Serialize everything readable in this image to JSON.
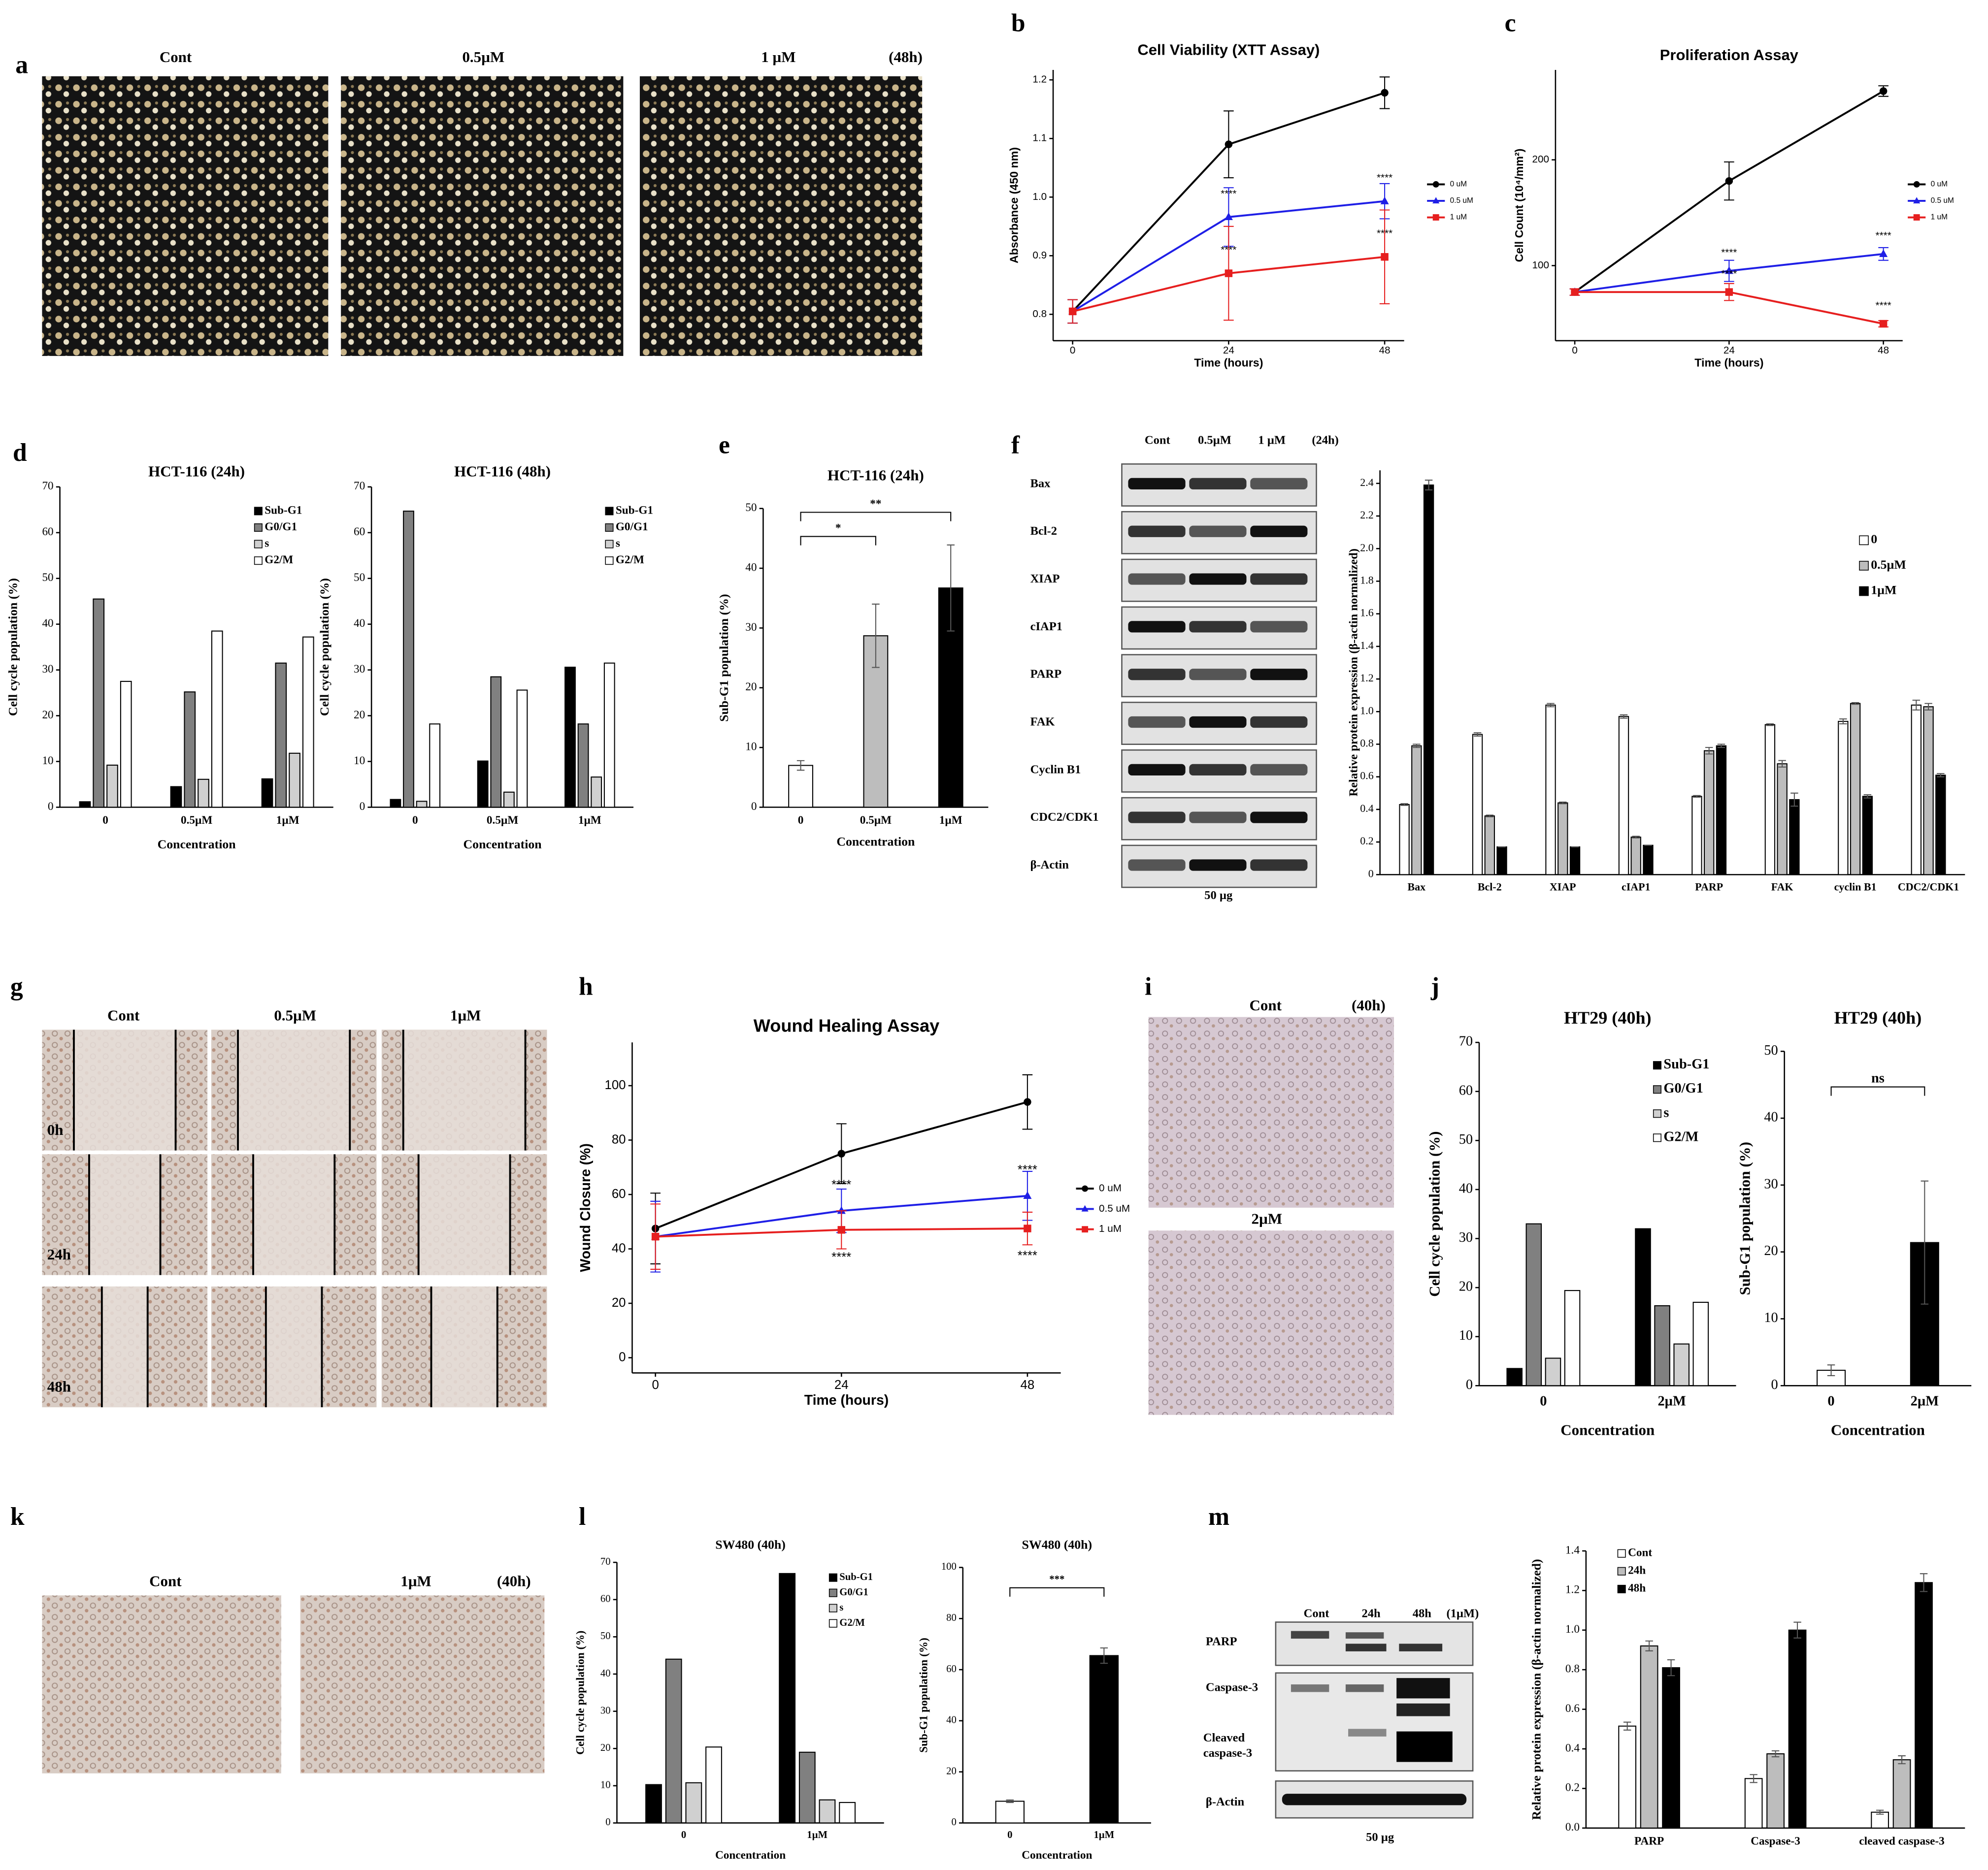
{
  "panel_letters": [
    "a",
    "b",
    "c",
    "d",
    "e",
    "f",
    "g",
    "h",
    "i",
    "j",
    "k",
    "l",
    "m"
  ],
  "images": {
    "a": {
      "labels": [
        "Cont",
        "0.5µM",
        "1 µM",
        "(48h)"
      ]
    },
    "f_blot": {
      "header": [
        "Cont",
        "0.5µM",
        "1 µM",
        "(24h)"
      ],
      "rows": [
        "Bax",
        "Bcl-2",
        "XIAP",
        "cIAP1",
        "PARP",
        "FAK",
        "Cyclin B1",
        "CDC2/CDK1",
        "β-Actin"
      ],
      "footer": "50 µg"
    },
    "g": {
      "columns": [
        "Cont",
        "0.5µM",
        "1µM"
      ],
      "rows": [
        "0h",
        "24h",
        "48h"
      ]
    },
    "i": {
      "labels": [
        "Cont",
        "(40h)",
        "2µM"
      ]
    },
    "k": {
      "labels": [
        "Cont",
        "1µM",
        "(40h)"
      ]
    },
    "m_blot": {
      "header": [
        "Cont",
        "24h",
        "48h",
        "(1µM)"
      ],
      "rows": [
        "PARP",
        "Caspase-3",
        "Cleaved caspase-3",
        "β-Actin"
      ],
      "footer": "50 µg"
    }
  },
  "chart_data": [
    {
      "type": "line",
      "title": "Cell Viability (XTT Assay)",
      "xlabel": "Time (hours)",
      "ylabel": "Absorbance (450 nm)",
      "x": [
        0,
        24,
        48
      ],
      "xlim": [
        -3,
        51
      ],
      "xticks": [
        0,
        24,
        48
      ],
      "ylim": [
        0.755,
        1.217
      ],
      "yticks": [
        0.8,
        0.9,
        {
          "value": 1,
          "label": "1.0"
        },
        1.1,
        1.2
      ],
      "legend": "right",
      "series": [
        {
          "name": "0 uM",
          "color": "#000000",
          "marker": "circle",
          "values": [
            0.805,
            1.09,
            1.178
          ],
          "errors": [
            0.02,
            0.057,
            0.027
          ],
          "significance": [
            null,
            null,
            null
          ]
        },
        {
          "name": "0.5 uM",
          "color": "#1f1fe6",
          "marker": "triangle",
          "values": [
            0.805,
            0.966,
            0.993
          ],
          "errors": [
            0.02,
            0.05,
            0.03
          ],
          "significance": [
            null,
            "****",
            "****"
          ]
        },
        {
          "name": "1 uM",
          "color": "#e61f1f",
          "marker": "square",
          "values": [
            0.805,
            0.87,
            0.898
          ],
          "errors": [
            0.02,
            0.08,
            0.08
          ],
          "significance": [
            null,
            "****",
            "****"
          ]
        }
      ]
    },
    {
      "type": "line",
      "title": "Proliferation Assay",
      "xlabel": "Time (hours)",
      "ylabel": "Cell Count (10⁴/mm²)",
      "x": [
        0,
        24,
        48
      ],
      "xlim": [
        -3,
        51
      ],
      "xticks": [
        0,
        24,
        48
      ],
      "ylim": [
        29,
        285
      ],
      "yticks": [
        100,
        200
      ],
      "legend": "right",
      "series": [
        {
          "name": "0 uM",
          "color": "#000000",
          "marker": "circle",
          "values": [
            75,
            180,
            265
          ],
          "errors": [
            3,
            18,
            5
          ],
          "significance": [
            null,
            null,
            null
          ]
        },
        {
          "name": "0.5 uM",
          "color": "#1f1fe6",
          "marker": "triangle",
          "values": [
            75,
            95,
            111
          ],
          "errors": [
            3,
            10,
            6
          ],
          "significance": [
            null,
            "****",
            "****"
          ]
        },
        {
          "name": "1 uM",
          "color": "#e61f1f",
          "marker": "square",
          "values": [
            75,
            75,
            45
          ],
          "errors": [
            3,
            8,
            3
          ],
          "significance": [
            null,
            "****",
            "****"
          ]
        }
      ]
    },
    {
      "type": "bar",
      "title": "HCT-116 (24h)",
      "xlabel": "Concentration",
      "ylabel": "Cell cycle population (%)",
      "categories": [
        "0",
        "0.5µM",
        "1µM"
      ],
      "ylim": [
        0,
        70
      ],
      "yticks": [
        0,
        10,
        20,
        30,
        40,
        50,
        60,
        70
      ],
      "legend": "upper right",
      "series": [
        {
          "name": "Sub-G1",
          "color": "#000000",
          "values": [
            1.2,
            4.5,
            6.2
          ]
        },
        {
          "name": "G0/G1",
          "color": "#808080",
          "values": [
            45.5,
            25.2,
            31.5
          ]
        },
        {
          "name": "s",
          "color": "#d0d0d0",
          "values": [
            9.2,
            6.1,
            11.8
          ]
        },
        {
          "name": "G2/M",
          "color": "#ffffff",
          "values": [
            27.5,
            38.5,
            37.2
          ]
        }
      ]
    },
    {
      "type": "bar",
      "title": "HCT-116 (48h)",
      "xlabel": "Concentration",
      "ylabel": "Cell cycle population (%)",
      "categories": [
        "0",
        "0.5µM",
        "1µM"
      ],
      "ylim": [
        0,
        70
      ],
      "yticks": [
        0,
        10,
        20,
        30,
        40,
        50,
        60,
        70
      ],
      "legend": "upper right",
      "series": [
        {
          "name": "Sub-G1",
          "color": "#000000",
          "values": [
            1.7,
            10.1,
            30.6
          ]
        },
        {
          "name": "G0/G1",
          "color": "#808080",
          "values": [
            64.7,
            28.5,
            18.2
          ]
        },
        {
          "name": "s",
          "color": "#d0d0d0",
          "values": [
            1.3,
            3.3,
            6.6
          ]
        },
        {
          "name": "G2/M",
          "color": "#ffffff",
          "values": [
            18.2,
            25.6,
            31.5
          ]
        }
      ]
    },
    {
      "type": "bar",
      "title": "HCT-116 (24h)",
      "xlabel": "Concentration",
      "ylabel": "Sub-G1 population (%)",
      "categories": [
        "0",
        "0.5µM",
        "1µM"
      ],
      "values": [
        7,
        28.7,
        36.7
      ],
      "errors": [
        0.8,
        5.3,
        7.2
      ],
      "colors": [
        "#ffffff",
        "#bdbdbd",
        "#000000"
      ],
      "ylim": [
        0,
        50
      ],
      "yticks": [
        0,
        10,
        20,
        30,
        40,
        50
      ],
      "brackets": [
        {
          "between": [
            0,
            1
          ],
          "label": "*"
        },
        {
          "between": [
            0,
            2
          ],
          "label": "**"
        }
      ]
    },
    {
      "type": "bar",
      "ylabel": "Relative protein expression (β-actin normalized)",
      "categories": [
        "Bax",
        "Bcl-2",
        "XIAP",
        "cIAP1",
        "PARP",
        "FAK",
        "cyclin B1",
        "CDC2/CDK1"
      ],
      "ylim": [
        0,
        2.48
      ],
      "yticks": [
        0,
        0.2,
        0.4,
        0.6,
        0.8,
        {
          "value": 1,
          "label": "1.0"
        },
        1.2,
        1.4,
        1.6,
        1.8,
        {
          "value": 2,
          "label": "2.0"
        },
        2.2,
        2.4
      ],
      "legend": "right",
      "series": [
        {
          "name": "0",
          "color": "#ffffff",
          "values": [
            0.43,
            0.86,
            1.04,
            0.97,
            0.48,
            0.92,
            0.94,
            1.04
          ],
          "errors": [
            0.005,
            0.01,
            0.01,
            0.01,
            0.005,
            0.005,
            0.015,
            0.03
          ]
        },
        {
          "name": "0.5µM",
          "color": "#bdbdbd",
          "values": [
            0.79,
            0.36,
            0.44,
            0.23,
            0.76,
            0.68,
            1.05,
            1.03
          ],
          "errors": [
            0.01,
            0.005,
            0.005,
            0.005,
            0.02,
            0.02,
            0.005,
            0.02
          ]
        },
        {
          "name": "1µM",
          "color": "#000000",
          "values": [
            2.39,
            0.17,
            0.17,
            0.18,
            0.79,
            0.46,
            0.48,
            0.61
          ],
          "errors": [
            0.03,
            0,
            0,
            0,
            0.01,
            0.04,
            0.01,
            0.01
          ]
        }
      ]
    },
    {
      "type": "line",
      "title": "Wound Healing Assay",
      "xlabel": "Time (hours)",
      "ylabel": "Wound Closure (%)",
      "x": [
        0,
        24,
        48
      ],
      "xlim": [
        -3,
        52.3
      ],
      "xticks": [
        0,
        24,
        48
      ],
      "ylim": [
        -5.6,
        115.9
      ],
      "yticks": [
        0,
        20,
        40,
        60,
        80,
        100
      ],
      "legend": "right",
      "series": [
        {
          "name": "0 uM",
          "color": "#000000",
          "marker": "circle",
          "values": [
            47.5,
            75,
            94
          ],
          "errors": [
            13,
            11,
            10
          ],
          "significance": [
            null,
            null,
            null
          ]
        },
        {
          "name": "0.5 uM",
          "color": "#1f1fe6",
          "marker": "triangle",
          "values": [
            44.5,
            54,
            59.5
          ],
          "errors": [
            13,
            8,
            9
          ],
          "significance": [
            null,
            "****",
            "****"
          ]
        },
        {
          "name": "1 uM",
          "color": "#e61f1f",
          "marker": "square",
          "values": [
            44.5,
            47,
            47.5
          ],
          "errors": [
            12,
            7,
            6
          ],
          "significance": [
            null,
            "****",
            "****"
          ]
        }
      ]
    },
    {
      "type": "bar",
      "title": "HT29 (40h)",
      "xlabel": "Concentration",
      "ylabel": "Cell cycle population (%)",
      "categories": [
        "0",
        "2µM"
      ],
      "ylim": [
        0,
        70
      ],
      "yticks": [
        0,
        10,
        20,
        30,
        40,
        50,
        60,
        70
      ],
      "legend": "upper right",
      "series": [
        {
          "name": "Sub-G1",
          "color": "#000000",
          "values": [
            3.5,
            32
          ]
        },
        {
          "name": "G0/G1",
          "color": "#808080",
          "values": [
            33,
            16.3
          ]
        },
        {
          "name": "s",
          "color": "#d0d0d0",
          "values": [
            5.6,
            8.5
          ]
        },
        {
          "name": "G2/M",
          "color": "#ffffff",
          "values": [
            19.4,
            17
          ]
        }
      ]
    },
    {
      "type": "bar",
      "title": "HT29 (40h)",
      "xlabel": "Concentration",
      "ylabel": "Sub-G1 population (%)",
      "categories": [
        "0",
        "2µM"
      ],
      "values": [
        2.3,
        21.4
      ],
      "errors": [
        0.8,
        9.2
      ],
      "colors": [
        "#ffffff",
        "#000000"
      ],
      "ylim": [
        0,
        50
      ],
      "yticks": [
        0,
        10,
        20,
        30,
        40,
        50
      ],
      "brackets": [
        {
          "between": [
            0,
            1
          ],
          "label": "ns"
        }
      ]
    },
    {
      "type": "bar",
      "title": "SW480 (40h)",
      "xlabel": "Concentration",
      "ylabel": "Cell cycle population (%)",
      "categories": [
        "0",
        "1µM"
      ],
      "ylim": [
        0,
        70
      ],
      "yticks": [
        0,
        10,
        20,
        30,
        40,
        50,
        60,
        70
      ],
      "legend": "upper right",
      "series": [
        {
          "name": "Sub-G1",
          "color": "#000000",
          "values": [
            10.3,
            67
          ]
        },
        {
          "name": "G0/G1",
          "color": "#808080",
          "values": [
            44,
            19
          ]
        },
        {
          "name": "s",
          "color": "#d0d0d0",
          "values": [
            10.8,
            6.2
          ]
        },
        {
          "name": "G2/M",
          "color": "#ffffff",
          "values": [
            20.4,
            5.5
          ]
        }
      ]
    },
    {
      "type": "bar",
      "title": "SW480 (40h)",
      "xlabel": "Concentration",
      "ylabel": "Sub-G1 population (%)",
      "categories": [
        "0",
        "1µM"
      ],
      "values": [
        8.5,
        65.5
      ],
      "errors": [
        0.5,
        3
      ],
      "colors": [
        "#ffffff",
        "#000000"
      ],
      "ylim": [
        0,
        100
      ],
      "yticks": [
        0,
        20,
        40,
        60,
        80,
        100
      ],
      "brackets": [
        {
          "between": [
            0,
            1
          ],
          "label": "***"
        }
      ]
    },
    {
      "type": "bar",
      "ylabel": "Relative protein expression (β-actin normalized)",
      "categories": [
        "PARP",
        "Caspase-3",
        "cleaved caspase-3"
      ],
      "ylim": [
        0,
        1.4
      ],
      "yticks": [
        {
          "value": 0,
          "label": "0.0"
        },
        0.2,
        0.4,
        0.6,
        0.8,
        {
          "value": 1,
          "label": "1.0"
        },
        1.2,
        1.4
      ],
      "legend": "upper left",
      "series": [
        {
          "name": "Cont",
          "color": "#ffffff",
          "values": [
            0.515,
            0.25,
            0.08
          ],
          "errors": [
            0.02,
            0.02,
            0.01
          ]
        },
        {
          "name": "24h",
          "color": "#bdbdbd",
          "values": [
            0.92,
            0.375,
            0.345
          ],
          "errors": [
            0.025,
            0.015,
            0.02
          ]
        },
        {
          "name": "48h",
          "color": "#000000",
          "values": [
            0.81,
            1.0,
            1.24
          ],
          "errors": [
            0.04,
            0.04,
            0.045
          ]
        }
      ]
    }
  ]
}
